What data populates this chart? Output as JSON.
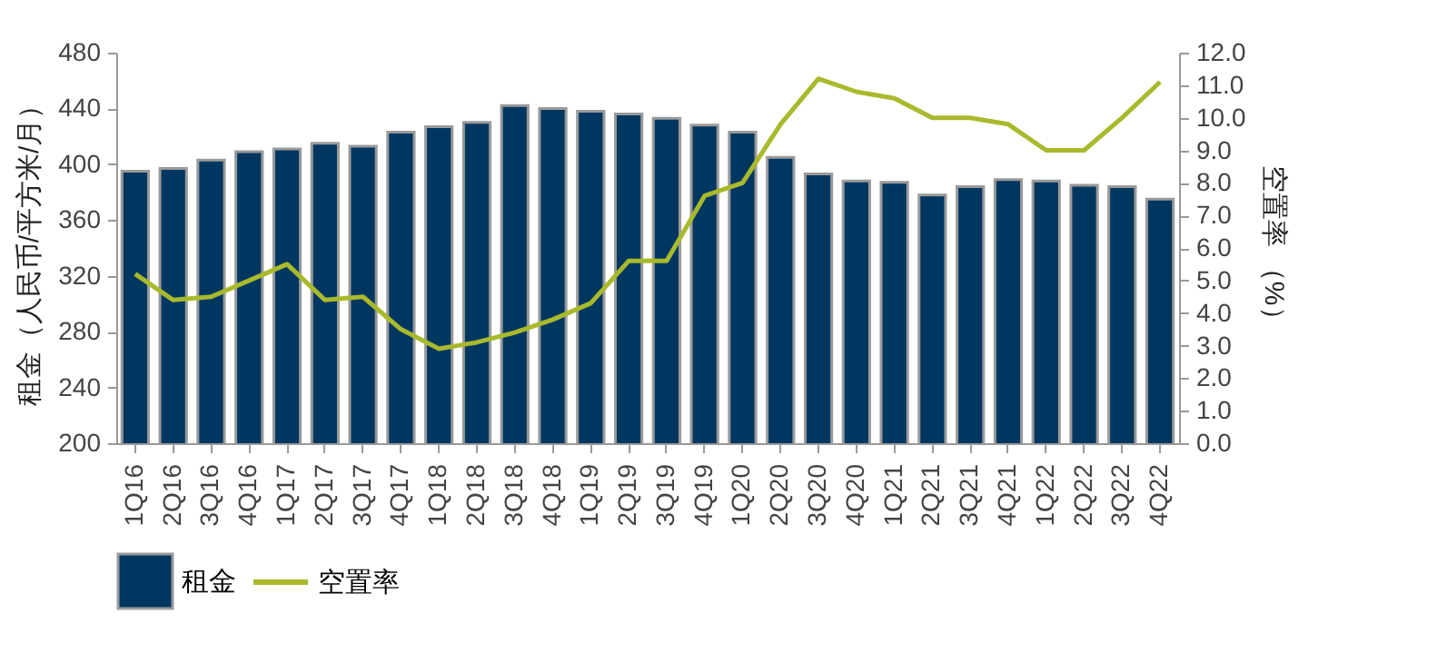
{
  "chart_data": {
    "type": "bar",
    "ylabel": "租金（人民币/平方米/月）",
    "y2label": "空置率 （%）",
    "categories": [
      "1Q16",
      "2Q16",
      "3Q16",
      "4Q16",
      "1Q17",
      "2Q17",
      "3Q17",
      "4Q17",
      "1Q18",
      "2Q18",
      "3Q18",
      "4Q18",
      "1Q19",
      "2Q19",
      "3Q19",
      "4Q19",
      "1Q20",
      "2Q20",
      "3Q20",
      "4Q20",
      "1Q21",
      "2Q21",
      "3Q21",
      "4Q21",
      "1Q22",
      "2Q22",
      "3Q22",
      "4Q22"
    ],
    "series": [
      {
        "name": "租金",
        "color": "#003761",
        "values": [
          395,
          397,
          403,
          409,
          411,
          415,
          413,
          423,
          427,
          430,
          442,
          440,
          438,
          436,
          433,
          428,
          423,
          405,
          393,
          388,
          387,
          378,
          384,
          389,
          388,
          385,
          384,
          375
        ]
      },
      {
        "name": "空置率",
        "type": "line",
        "axis": "y2",
        "color": "#a9b92c",
        "values": [
          5.2,
          4.4,
          4.5,
          5.0,
          5.5,
          4.4,
          4.5,
          3.5,
          2.9,
          3.1,
          3.4,
          3.8,
          4.3,
          5.6,
          5.6,
          7.6,
          8.0,
          9.8,
          11.2,
          10.8,
          10.6,
          10.0,
          10.0,
          9.8,
          9.0,
          9.0,
          10.0,
          11.1
        ]
      }
    ],
    "ylim": [
      200,
      480
    ],
    "yticks": [
      200,
      240,
      280,
      320,
      360,
      400,
      440,
      480
    ],
    "y2lim": [
      0,
      12
    ],
    "y2ticks": [
      {
        "value": 0,
        "label": "0.0"
      },
      {
        "value": 1,
        "label": "1.0"
      },
      {
        "value": 2,
        "label": "2.0"
      },
      {
        "value": 3,
        "label": "3.0"
      },
      {
        "value": 4,
        "label": "4.0"
      },
      {
        "value": 5,
        "label": "5.0"
      },
      {
        "value": 6,
        "label": "6.0"
      },
      {
        "value": 7,
        "label": "7.0"
      },
      {
        "value": 8,
        "label": "8.0"
      },
      {
        "value": 9,
        "label": "9.0"
      },
      {
        "value": 10,
        "label": "10.0"
      },
      {
        "value": 11,
        "label": "11.0"
      },
      {
        "value": 12,
        "label": "12.0"
      }
    ],
    "grid": false,
    "legend": "bottom",
    "marker": "none",
    "line_style": "solid"
  }
}
